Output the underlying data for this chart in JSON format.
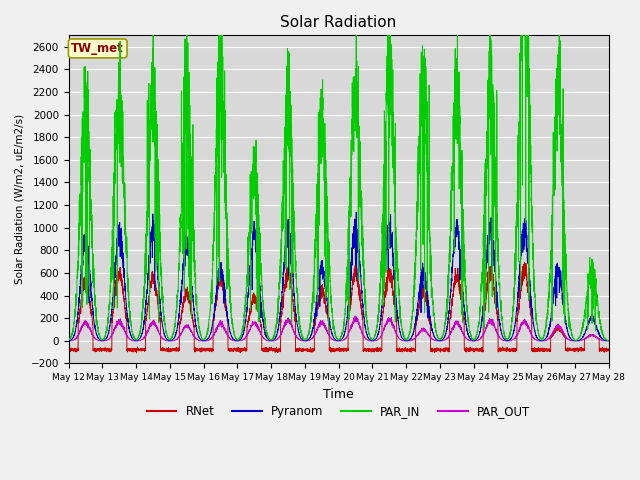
{
  "title": "Solar Radiation",
  "ylabel": "Solar Radiation (W/m2, uE/m2/s)",
  "xlabel": "Time",
  "station_label": "TW_met",
  "ylim": [
    -200,
    2700
  ],
  "yticks": [
    -200,
    0,
    200,
    400,
    600,
    800,
    1000,
    1200,
    1400,
    1600,
    1800,
    2000,
    2200,
    2400,
    2600
  ],
  "colors": {
    "RNet": "#cc0000",
    "Pyranom": "#0000cc",
    "PAR_IN": "#00cc00",
    "PAR_OUT": "#cc00cc"
  },
  "background_color": "#d8d8d8",
  "grid_color": "#ffffff",
  "n_days": 16,
  "start_day": 12,
  "points_per_day": 288,
  "day_peaks_PAR_IN": [
    2100,
    2150,
    2200,
    2200,
    2300,
    1480,
    2080,
    1960,
    2200,
    2400,
    2250,
    2200,
    2300,
    3350,
    2200,
    630
  ],
  "day_peaks_Pyranom": [
    900,
    960,
    990,
    870,
    620,
    950,
    950,
    640,
    1010,
    1000,
    600,
    990,
    1000,
    1000,
    630,
    200
  ],
  "day_peaks_RNet": [
    520,
    600,
    560,
    420,
    550,
    380,
    610,
    440,
    600,
    600,
    440,
    570,
    610,
    620,
    100,
    50
  ],
  "day_peaks_PAR_OUT": [
    160,
    170,
    160,
    130,
    150,
    160,
    180,
    160,
    190,
    190,
    100,
    160,
    180,
    170,
    130,
    50
  ],
  "night_RNet": -80,
  "figsize": [
    6.4,
    4.8
  ],
  "dpi": 100
}
